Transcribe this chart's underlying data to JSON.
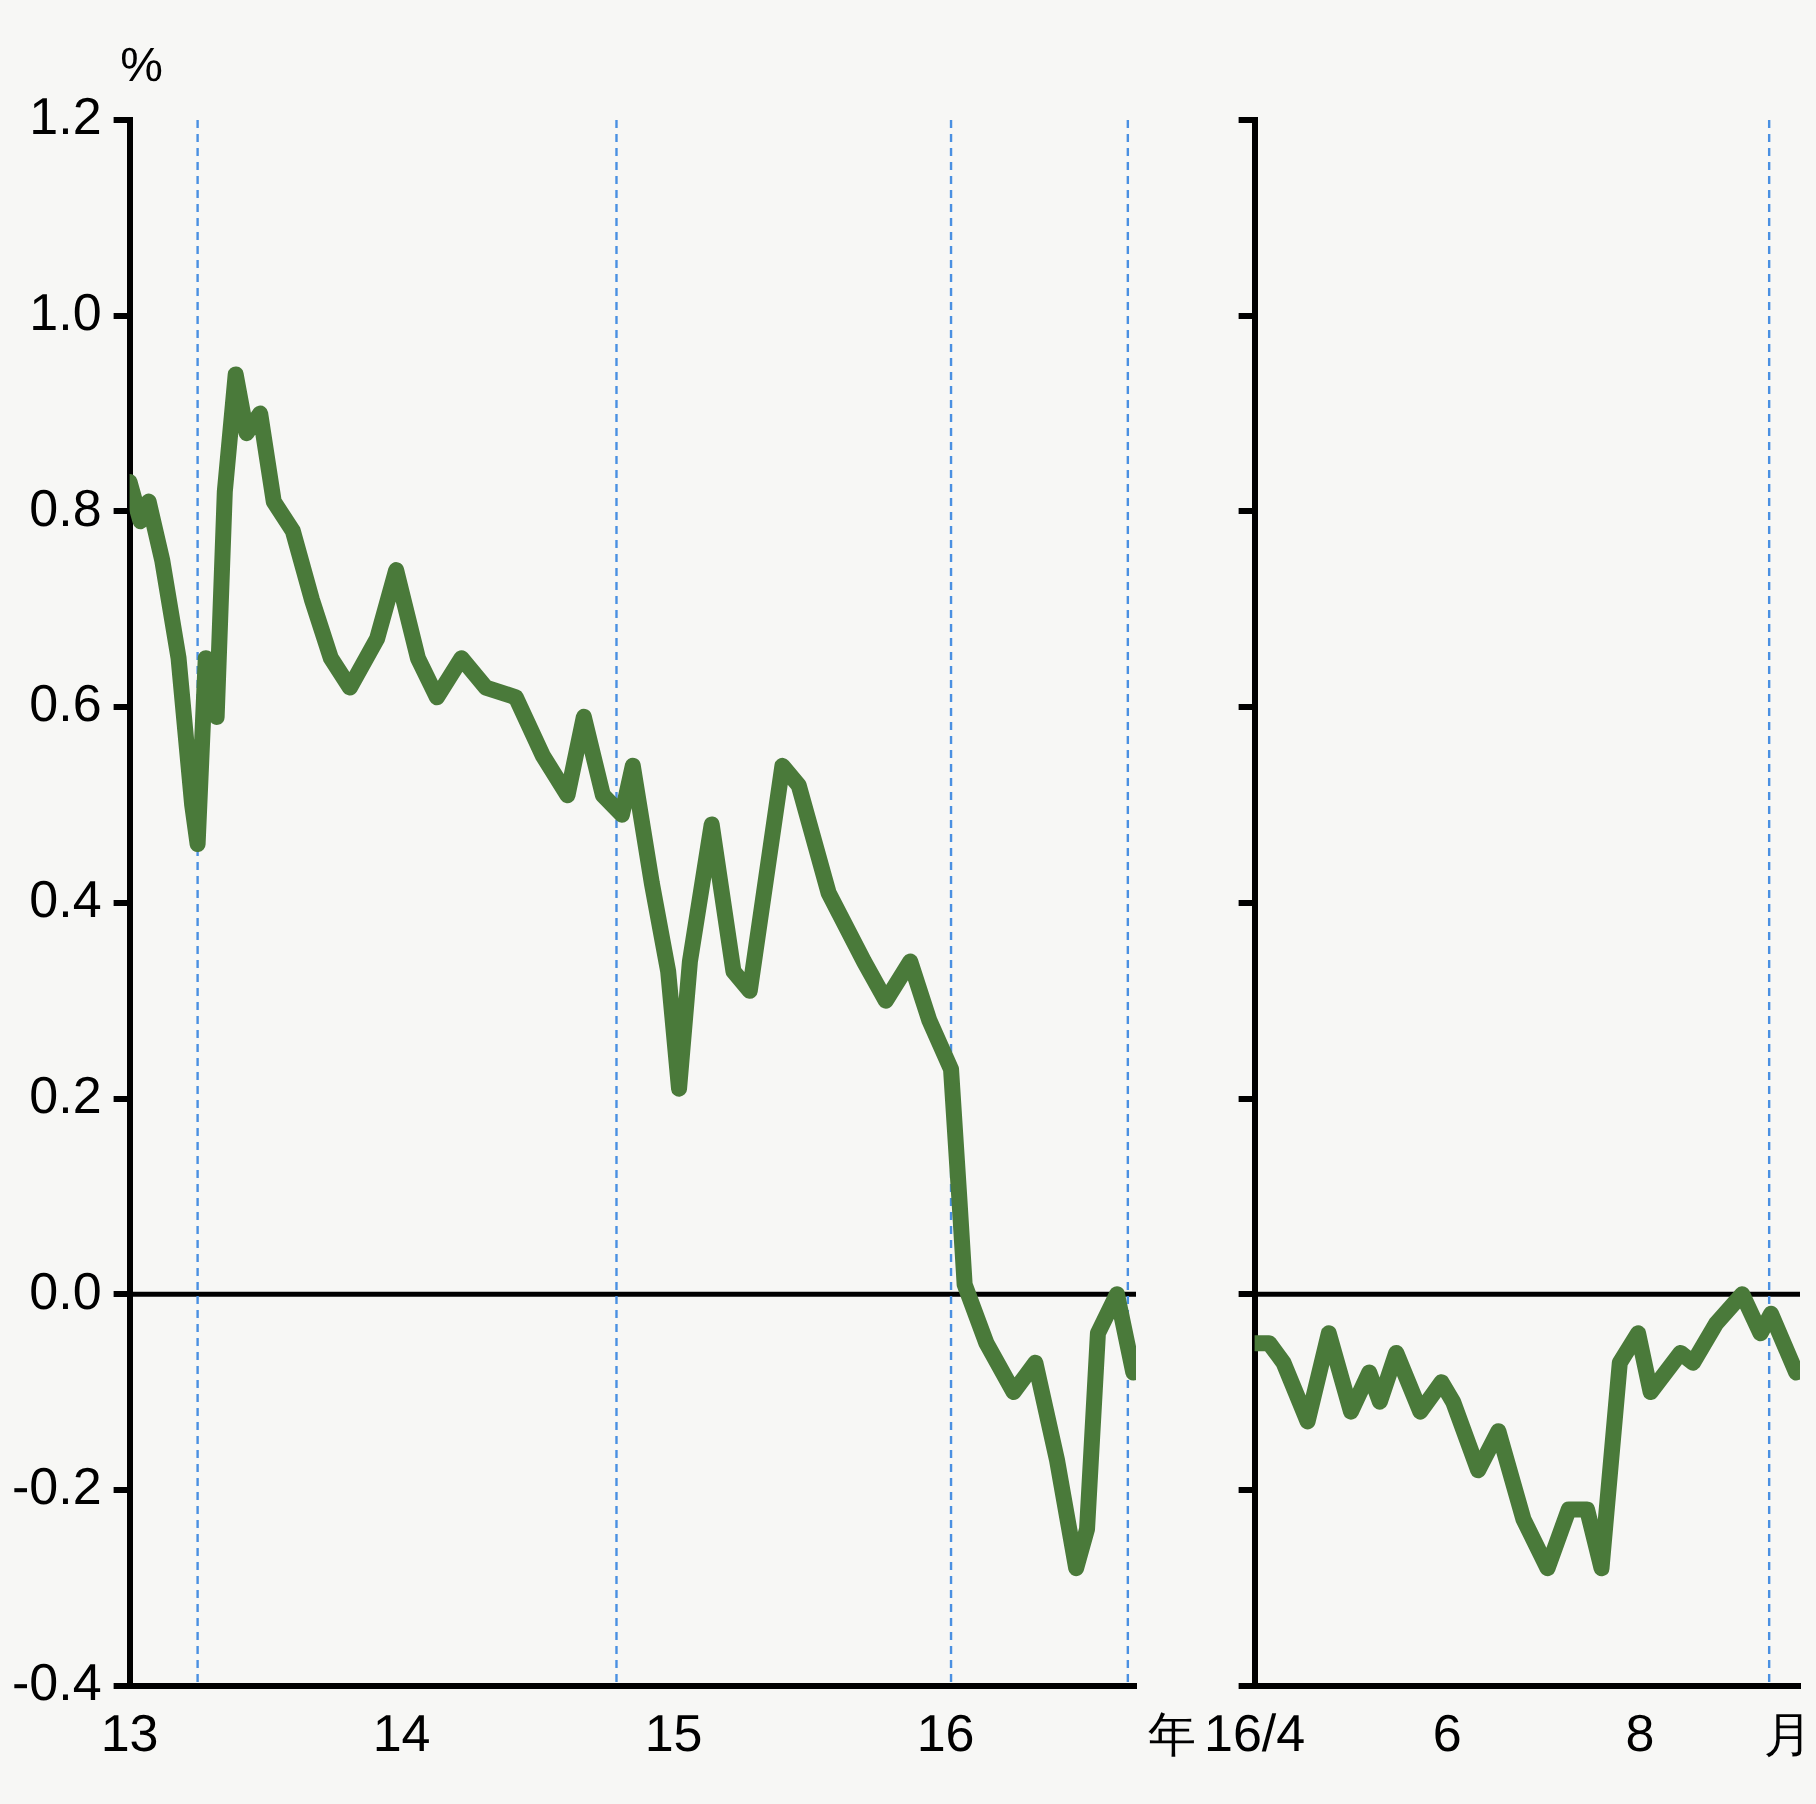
{
  "chart_data": [
    {
      "type": "line",
      "ylabel": "%",
      "xlabel": "年",
      "xlim": [
        2013,
        2016.7
      ],
      "xticks": [
        {
          "value": 2013,
          "label": "13"
        },
        {
          "value": 2014,
          "label": "14"
        },
        {
          "value": 2015,
          "label": "15"
        },
        {
          "value": 2016,
          "label": "16"
        }
      ],
      "ylim": [
        -0.4,
        1.2
      ],
      "yticks": [
        {
          "value": -0.4,
          "label": "-0.4"
        },
        {
          "value": -0.2,
          "label": "-0.2"
        },
        {
          "value": 0,
          "label": "0.0"
        },
        {
          "value": 0.2,
          "label": "0.2"
        },
        {
          "value": 0.4,
          "label": "0.4"
        },
        {
          "value": 0.6,
          "label": "0.6"
        },
        {
          "value": 0.8,
          "label": "0.8"
        },
        {
          "value": 1,
          "label": "1.0"
        },
        {
          "value": 1.2,
          "label": "1.2"
        }
      ],
      "grid": false,
      "legend": false,
      "x": [
        2013.0,
        2013.04,
        2013.07,
        2013.12,
        2013.18,
        2013.23,
        2013.25,
        2013.28,
        2013.32,
        2013.35,
        2013.39,
        2013.43,
        2013.48,
        2013.53,
        2013.6,
        2013.67,
        2013.74,
        2013.81,
        2013.91,
        2013.98,
        2014.06,
        2014.13,
        2014.22,
        2014.31,
        2014.42,
        2014.52,
        2014.61,
        2014.67,
        2014.74,
        2014.81,
        2014.85,
        2014.92,
        2014.98,
        2015.02,
        2015.06,
        2015.14,
        2015.22,
        2015.28,
        2015.4,
        2015.46,
        2015.57,
        2015.7,
        2015.78,
        2015.87,
        2015.94,
        2016.02,
        2016.05,
        2016.07,
        2016.15,
        2016.25,
        2016.33,
        2016.41,
        2016.48,
        2016.52,
        2016.56,
        2016.63,
        2016.69
      ],
      "series": [
        {
          "color": "#4a7a3a",
          "values": [
            0.83,
            0.79,
            0.81,
            0.75,
            0.65,
            0.5,
            0.46,
            0.65,
            0.59,
            0.82,
            0.94,
            0.88,
            0.9,
            0.81,
            0.78,
            0.71,
            0.65,
            0.62,
            0.67,
            0.74,
            0.65,
            0.61,
            0.65,
            0.62,
            0.61,
            0.55,
            0.51,
            0.59,
            0.51,
            0.49,
            0.54,
            0.42,
            0.33,
            0.21,
            0.34,
            0.48,
            0.33,
            0.31,
            0.54,
            0.52,
            0.41,
            0.34,
            0.3,
            0.34,
            0.28,
            0.23,
            0.1,
            0.01,
            -0.05,
            -0.1,
            -0.07,
            -0.17,
            -0.28,
            -0.24,
            -0.04,
            0.0,
            -0.08
          ]
        }
      ],
      "ref_lines": [
        {
          "axis": "y",
          "value": 0,
          "color": "#000000",
          "line_style": "solid"
        },
        {
          "axis": "x",
          "value": 2013.25,
          "color": "#4a90e2",
          "line_style": "dashed"
        },
        {
          "axis": "x",
          "value": 2014.79,
          "color": "#4a90e2",
          "line_style": "dashed"
        },
        {
          "axis": "x",
          "value": 2016.02,
          "color": "#4a90e2",
          "line_style": "dashed"
        },
        {
          "axis": "x",
          "value": 2016.67,
          "color": "#4a90e2",
          "line_style": "dashed"
        }
      ]
    },
    {
      "type": "line",
      "xlabel": "月",
      "xlim": [
        4,
        9.66
      ],
      "xticks": [
        {
          "value": 4,
          "label": "16/4"
        },
        6,
        8
      ],
      "ylim": [
        -0.4,
        1.2
      ],
      "yticks": [
        -0.4,
        -0.2,
        0,
        0.2,
        0.4,
        0.6,
        0.8,
        1,
        1.2
      ],
      "tick_labels": "x",
      "grid": false,
      "legend": false,
      "x": [
        4.0,
        4.15,
        4.3,
        4.55,
        4.77,
        5.0,
        5.19,
        5.3,
        5.47,
        5.72,
        5.94,
        6.06,
        6.32,
        6.53,
        6.79,
        7.04,
        7.26,
        7.45,
        7.6,
        7.79,
        7.98,
        8.11,
        8.42,
        8.55,
        8.79,
        9.06,
        9.25,
        9.36,
        9.62
      ],
      "series": [
        {
          "color": "#4a7a3a",
          "values": [
            -0.05,
            -0.05,
            -0.07,
            -0.13,
            -0.04,
            -0.12,
            -0.08,
            -0.11,
            -0.06,
            -0.12,
            -0.09,
            -0.11,
            -0.18,
            -0.14,
            -0.23,
            -0.28,
            -0.22,
            -0.22,
            -0.28,
            -0.07,
            -0.04,
            -0.1,
            -0.06,
            -0.07,
            -0.03,
            0.0,
            -0.04,
            -0.02,
            -0.08
          ]
        }
      ],
      "ref_lines": [
        {
          "axis": "y",
          "value": 0,
          "color": "#000000",
          "line_style": "solid"
        },
        {
          "axis": "x",
          "value": 9.34,
          "color": "#4a90e2",
          "line_style": "dashed"
        }
      ]
    }
  ]
}
